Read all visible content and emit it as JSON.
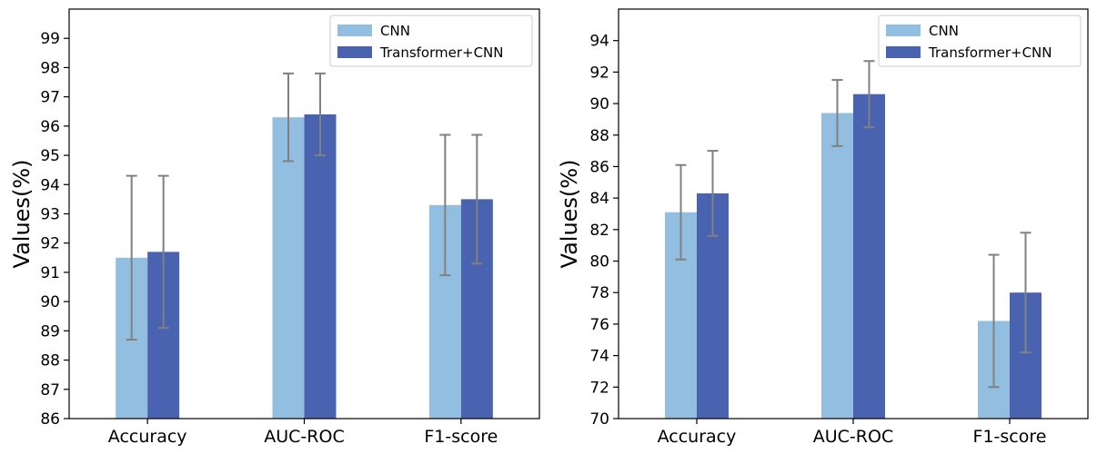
{
  "colors": {
    "cnn": "#92bfe0",
    "transformer_cnn": "#4a63b0",
    "errorbar": "#808080",
    "axis": "#000000"
  },
  "chart_data": [
    {
      "type": "bar",
      "title": "",
      "xlabel": "",
      "ylabel": "Values(%)",
      "categories": [
        "Accuracy",
        "AUC-ROC",
        "F1-score"
      ],
      "ylim": [
        86,
        100
      ],
      "yticks": [
        86,
        87,
        88,
        89,
        90,
        91,
        92,
        93,
        94,
        95,
        96,
        97,
        98,
        99
      ],
      "legend_position": "top-right",
      "series": [
        {
          "name": "CNN",
          "values": [
            91.5,
            96.3,
            93.3
          ],
          "errors": [
            2.8,
            1.5,
            2.4
          ]
        },
        {
          "name": "Transformer+CNN",
          "values": [
            91.7,
            96.4,
            93.5
          ],
          "errors": [
            2.6,
            1.4,
            2.2
          ]
        }
      ]
    },
    {
      "type": "bar",
      "title": "",
      "xlabel": "",
      "ylabel": "Values(%)",
      "categories": [
        "Accuracy",
        "AUC-ROC",
        "F1-score"
      ],
      "ylim": [
        70,
        96
      ],
      "yticks": [
        70,
        72,
        74,
        76,
        78,
        80,
        82,
        84,
        86,
        88,
        90,
        92,
        94
      ],
      "legend_position": "top-right",
      "series": [
        {
          "name": "CNN",
          "values": [
            83.1,
            89.4,
            76.2
          ],
          "errors": [
            3.0,
            2.1,
            4.2
          ]
        },
        {
          "name": "Transformer+CNN",
          "values": [
            84.3,
            90.6,
            78.0
          ],
          "errors": [
            2.7,
            2.1,
            3.8
          ]
        }
      ]
    }
  ]
}
